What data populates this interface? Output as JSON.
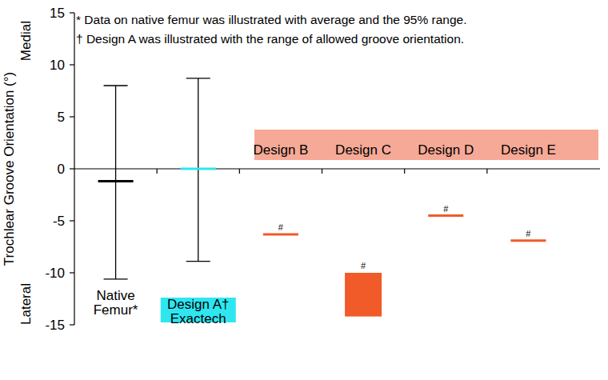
{
  "chart_data": {
    "type": "range",
    "annotations": [
      "* Data on native femur was illustrated with average and the 95% range.",
      "† Design A was illustrated with the range of allowed groove orientation."
    ],
    "ylabel": "Trochlear Groove Orientation (°)",
    "y_direction_labels": {
      "high": "Medial",
      "low": "Lateral"
    },
    "categories": [
      "Native\nFemur*",
      "Design A†\nExactech",
      "Design B",
      "Design C",
      "Design D",
      "Design E"
    ],
    "values": [
      -1.2,
      0,
      -6.3,
      null,
      -4.5,
      -6.9
    ],
    "low": [
      -10.6,
      -8.9,
      null,
      -14.2,
      null,
      null
    ],
    "high": [
      8.0,
      8.7,
      null,
      -10.0,
      null,
      null
    ],
    "significance_labels": [
      null,
      null,
      "#",
      "#",
      "#",
      "#"
    ],
    "colors": [
      "#000000",
      "#2ee6f0",
      "#f15a29",
      "#f15a29",
      "#f15a29",
      "#f15a29"
    ],
    "ylim": [
      -15,
      15
    ],
    "yticks": [
      -15,
      -10,
      -5,
      0,
      5,
      10,
      15
    ],
    "grid": false
  }
}
